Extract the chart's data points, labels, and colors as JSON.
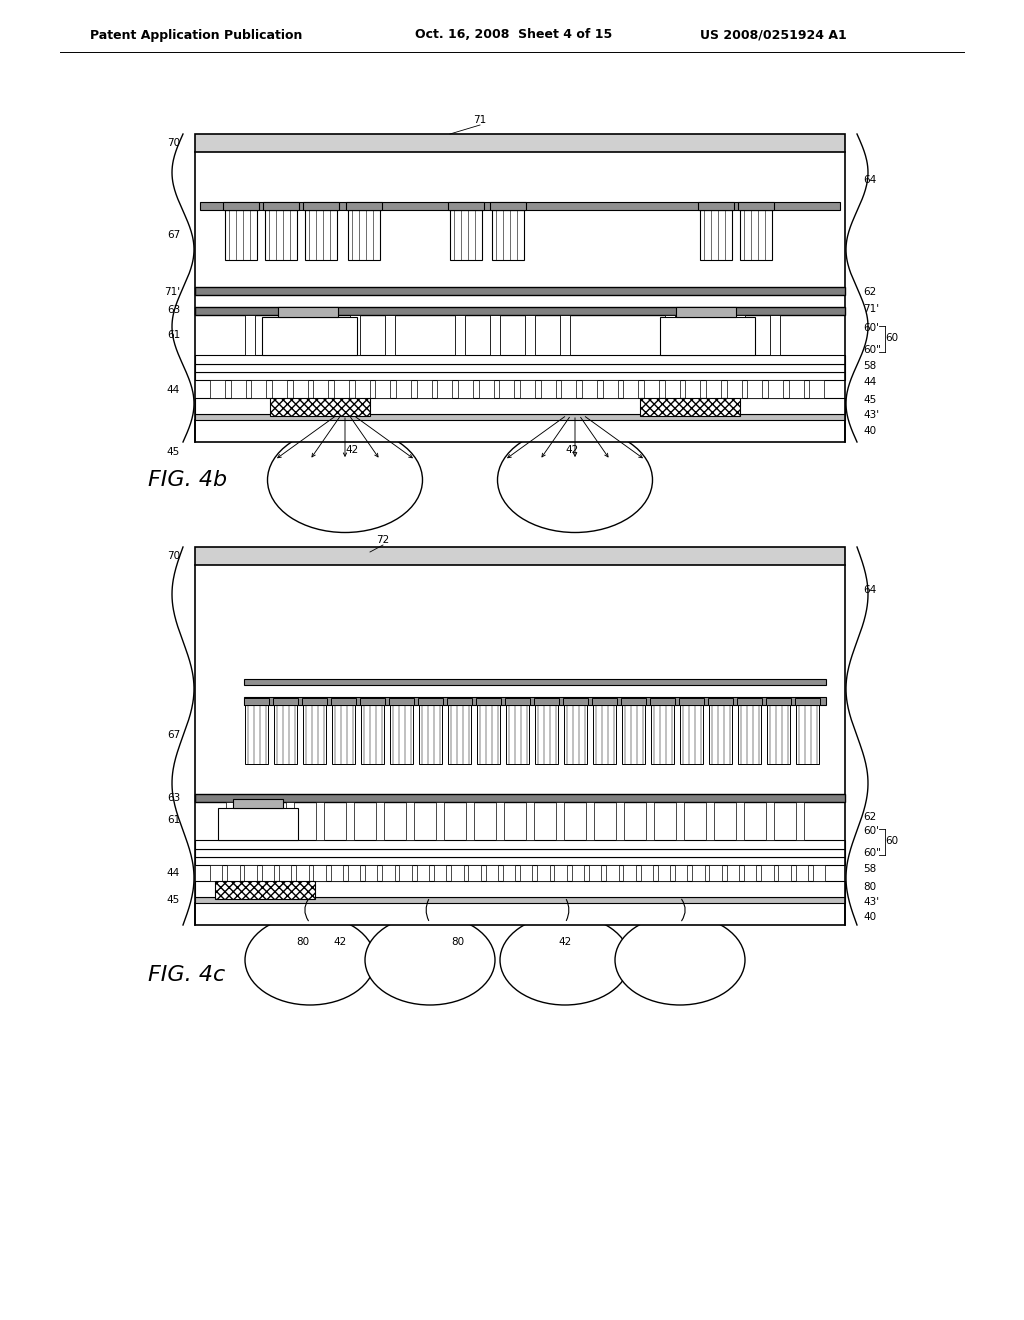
{
  "bg_color": "#ffffff",
  "header_text": "Patent Application Publication",
  "header_date": "Oct. 16, 2008  Sheet 4 of 15",
  "header_patent": "US 2008/0251924 A1",
  "fig4b_label": "FIG. 4b",
  "fig4c_label": "FIG. 4c"
}
